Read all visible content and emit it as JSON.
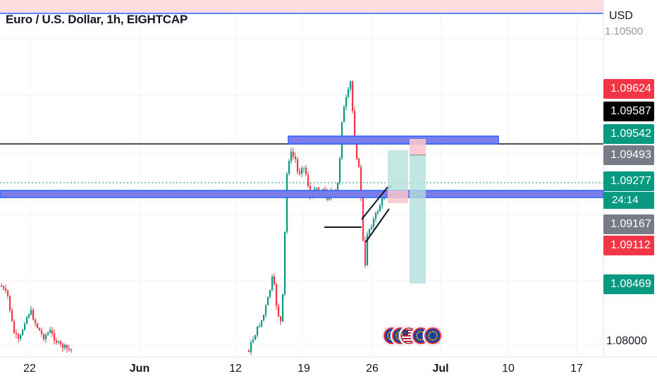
{
  "header": {
    "title": "Euro / U.S. Dollar, 1h, EIGHTCAP"
  },
  "price_axis": {
    "currency": "USD",
    "partial_label": "1.10500",
    "labels": [
      {
        "text": "1.09624",
        "color": "#f23645"
      },
      {
        "text": "1.09587",
        "color": "#000000"
      },
      {
        "text": "1.09542",
        "color": "#089981"
      },
      {
        "text": "1.09493",
        "color": "#787b86"
      },
      {
        "text": "1.09277",
        "color": "#089981"
      },
      {
        "text": "1.09167",
        "color": "#787b86"
      },
      {
        "text": "1.09112",
        "color": "#f23645"
      },
      {
        "text": "1.08469",
        "color": "#089981"
      }
    ],
    "countdown": "24:14",
    "bottom_label": "1.08000"
  },
  "time_axis": {
    "labels": [
      "22",
      "Jun",
      "12",
      "19",
      "26",
      "Jul",
      "10",
      "17"
    ],
    "bold_labels": [
      "Jun",
      "Jul"
    ]
  },
  "colors": {
    "up": "#089981",
    "down": "#f23645",
    "zone": "#7b7ee8",
    "zone_border": "#2962ff",
    "target": "#b2dfdb",
    "stop": "#f8c6cc"
  },
  "icons": [
    "eu-flag-icon",
    "eu-flag-icon",
    "us-flag-icon",
    "eu-flag-icon",
    "eu-flag-icon"
  ]
}
